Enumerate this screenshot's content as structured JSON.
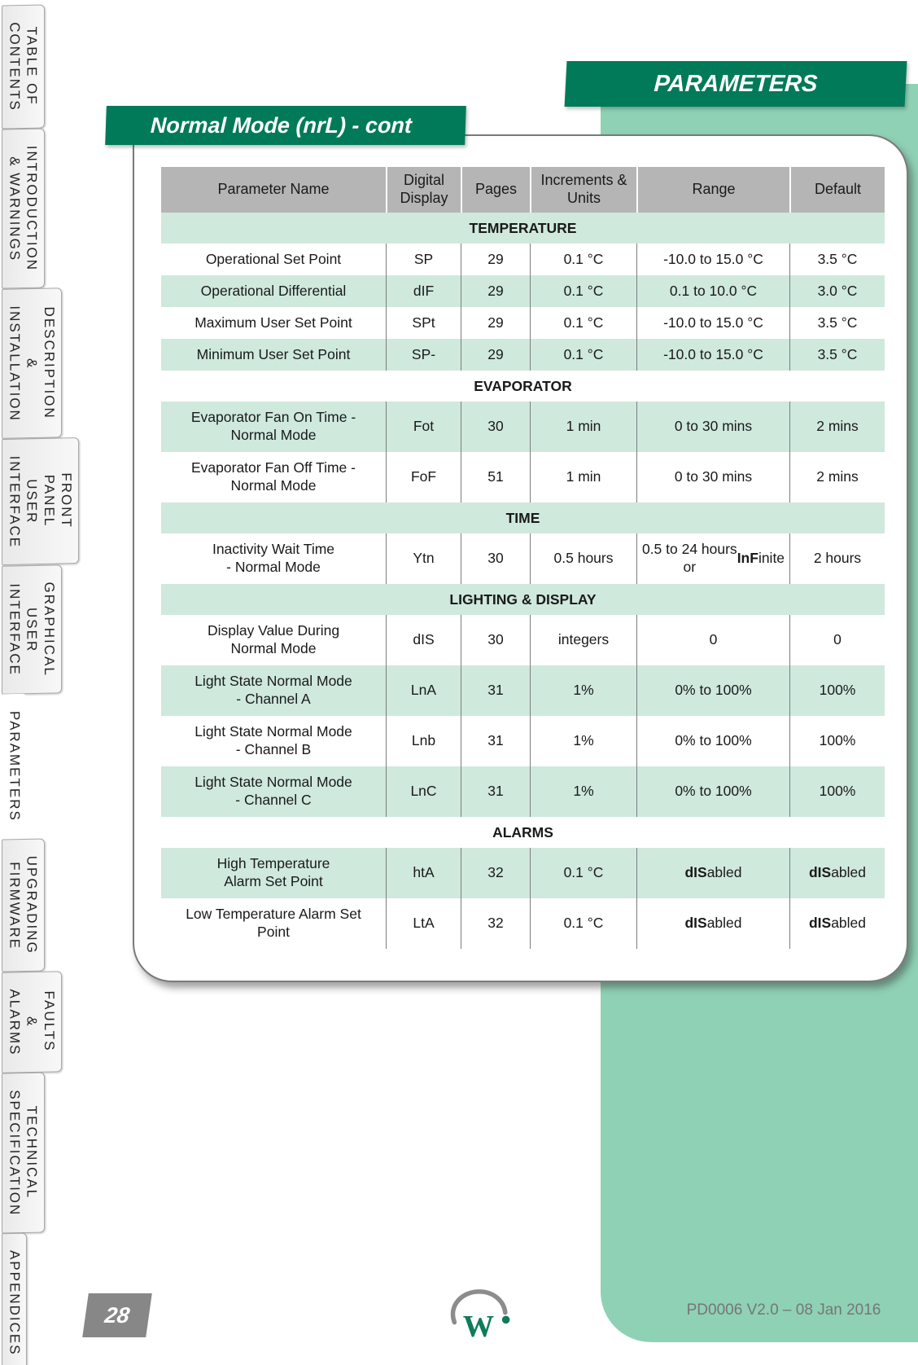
{
  "colors": {
    "accent_green": "#007a58",
    "panel_green": "#8fd1b5",
    "row_green": "#cfe9dd",
    "header_gray": "#b5b5b5"
  },
  "header": {
    "page_banner": "PARAMETERS",
    "section_banner": "Normal Mode (nrL) - cont"
  },
  "sidebar": {
    "items": [
      {
        "label": "TABLE OF\nCONTENTS",
        "active": false
      },
      {
        "label": "INTRODUCTION\n& WARNINGS",
        "active": false
      },
      {
        "label": "DESCRIPTION\n& INSTALLATION",
        "active": false
      },
      {
        "label": "FRONT PANEL\nUSER INTERFACE",
        "active": false
      },
      {
        "label": "GRAPHICAL\nUSER INTERFACE",
        "active": false
      },
      {
        "label": "PARAMETERS",
        "active": true
      },
      {
        "label": "UPGRADING\nFIRMWARE",
        "active": false
      },
      {
        "label": "FAULTS &\nALARMS",
        "active": false
      },
      {
        "label": "TECHNICAL\nSPECIFICATION",
        "active": false
      },
      {
        "label": "APPENDICES",
        "active": false
      }
    ]
  },
  "table": {
    "columns": [
      "Parameter Name",
      "Digital\nDisplay",
      "Pages",
      "Increments &\nUnits",
      "Range",
      "Default"
    ],
    "rows": [
      {
        "type": "section",
        "shade": "green",
        "label": "TEMPERATURE"
      },
      {
        "type": "param",
        "shade": "white",
        "name": "Operational Set Point",
        "display": "SP",
        "pages": "29",
        "increments": "0.1 °C",
        "range": "-10.0 to 15.0 °C",
        "default": "3.5 °C"
      },
      {
        "type": "param",
        "shade": "green",
        "name": "Operational Differential",
        "display": "dIF",
        "pages": "29",
        "increments": "0.1 °C",
        "range": "0.1 to 10.0 °C",
        "default": "3.0 °C"
      },
      {
        "type": "param",
        "shade": "white",
        "name": "Maximum User Set Point",
        "display": "SPt",
        "pages": "29",
        "increments": "0.1 °C",
        "range": "-10.0 to 15.0 °C",
        "default": "3.5 °C"
      },
      {
        "type": "param",
        "shade": "green",
        "name": "Minimum User Set Point",
        "display": "SP-",
        "pages": "29",
        "increments": "0.1 °C",
        "range": "-10.0 to 15.0 °C",
        "default": "3.5 °C"
      },
      {
        "type": "section",
        "shade": "white",
        "label": "EVAPORATOR"
      },
      {
        "type": "param",
        "shade": "green",
        "name": "Evaporator Fan On Time -\nNormal Mode",
        "display": "Fot",
        "pages": "30",
        "increments": "1 min",
        "range": "0 to 30 mins",
        "default": "2 mins"
      },
      {
        "type": "param",
        "shade": "white",
        "name": "Evaporator Fan Off Time -\nNormal Mode",
        "display": "FoF",
        "pages": "51",
        "increments": "1 min",
        "range": "0 to 30 mins",
        "default": "2 mins"
      },
      {
        "type": "section",
        "shade": "green",
        "label": "TIME"
      },
      {
        "type": "param",
        "shade": "white",
        "name": "Inactivity Wait Time\n- Normal Mode",
        "display": "Ytn",
        "pages": "30",
        "increments": "0.5 hours",
        "range": [
          {
            "t": "0.5 to 24 hours\nor "
          },
          {
            "t": "InF",
            "b": true
          },
          {
            "t": "inite"
          }
        ],
        "default": "2 hours"
      },
      {
        "type": "section",
        "shade": "green",
        "label": "LIGHTING & DISPLAY"
      },
      {
        "type": "param",
        "shade": "white",
        "name": "Display Value During\nNormal Mode",
        "display": "dIS",
        "pages": "30",
        "increments": "integers",
        "range": "0",
        "default": "0"
      },
      {
        "type": "param",
        "shade": "green",
        "name": "Light State Normal Mode\n- Channel A",
        "display": "LnA",
        "pages": "31",
        "increments": "1%",
        "range": "0% to 100%",
        "default": "100%"
      },
      {
        "type": "param",
        "shade": "white",
        "name": "Light State Normal Mode\n- Channel B",
        "display": "Lnb",
        "pages": "31",
        "increments": "1%",
        "range": "0% to 100%",
        "default": "100%"
      },
      {
        "type": "param",
        "shade": "green",
        "name": "Light State Normal Mode\n- Channel C",
        "display": "LnC",
        "pages": "31",
        "increments": "1%",
        "range": "0% to 100%",
        "default": "100%"
      },
      {
        "type": "section",
        "shade": "white",
        "label": "ALARMS"
      },
      {
        "type": "param",
        "shade": "green",
        "name": "High Temperature\nAlarm Set Point",
        "display": "htA",
        "pages": "32",
        "increments": "0.1 °C",
        "range": [
          {
            "t": "dIS",
            "b": true
          },
          {
            "t": "abled"
          }
        ],
        "default": [
          {
            "t": "dIS",
            "b": true
          },
          {
            "t": "abled"
          }
        ]
      },
      {
        "type": "param",
        "shade": "white",
        "name": "Low Temperature Alarm Set\nPoint",
        "display": "LtA",
        "pages": "32",
        "increments": "0.1 °C",
        "range": [
          {
            "t": "dIS",
            "b": true
          },
          {
            "t": "abled"
          }
        ],
        "default": [
          {
            "t": "dIS",
            "b": true
          },
          {
            "t": "abled"
          }
        ]
      }
    ]
  },
  "footer": {
    "page_number": "28",
    "doc_ref": "PD0006 V2.0 – 08 Jan 2016",
    "logo_letter": "W"
  }
}
